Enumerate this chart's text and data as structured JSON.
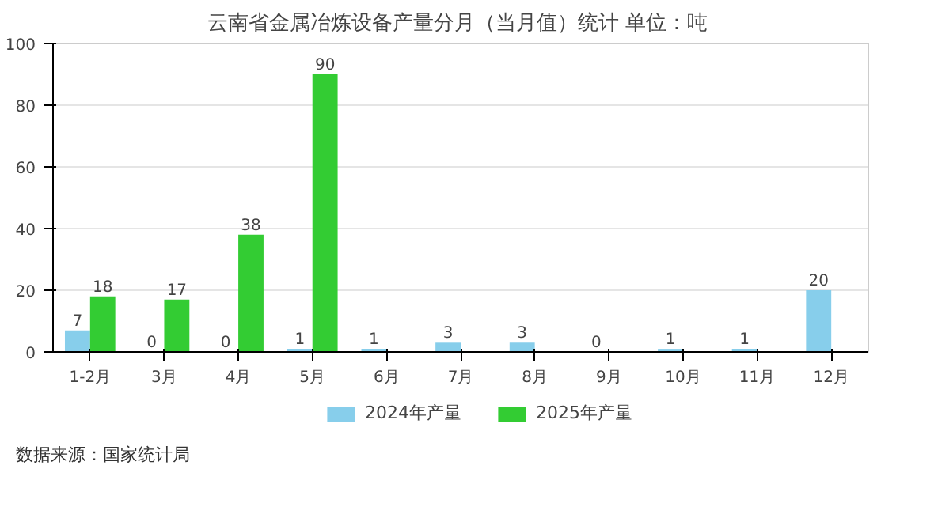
{
  "chart_data": {
    "type": "bar",
    "title": "云南省金属冶炼设备产量分月（当月值）统计  单位：吨",
    "categories": [
      "1-2月",
      "3月",
      "4月",
      "5月",
      "6月",
      "7月",
      "8月",
      "9月",
      "10月",
      "11月",
      "12月"
    ],
    "series": [
      {
        "name": "2024年产量",
        "color": "#87ceeb",
        "values": [
          7,
          0,
          0,
          1,
          1,
          3,
          3,
          0,
          1,
          1,
          20
        ]
      },
      {
        "name": "2025年产量",
        "color": "#33cc33",
        "values": [
          18,
          17,
          38,
          90,
          null,
          null,
          null,
          null,
          null,
          null,
          null
        ]
      }
    ],
    "ylim": [
      0,
      100
    ],
    "yticks": [
      0,
      20,
      40,
      60,
      80,
      100
    ],
    "grid": "y",
    "legend": "bottom",
    "data_labels": true,
    "annotations": [
      "数据来源：国家统计局"
    ]
  }
}
